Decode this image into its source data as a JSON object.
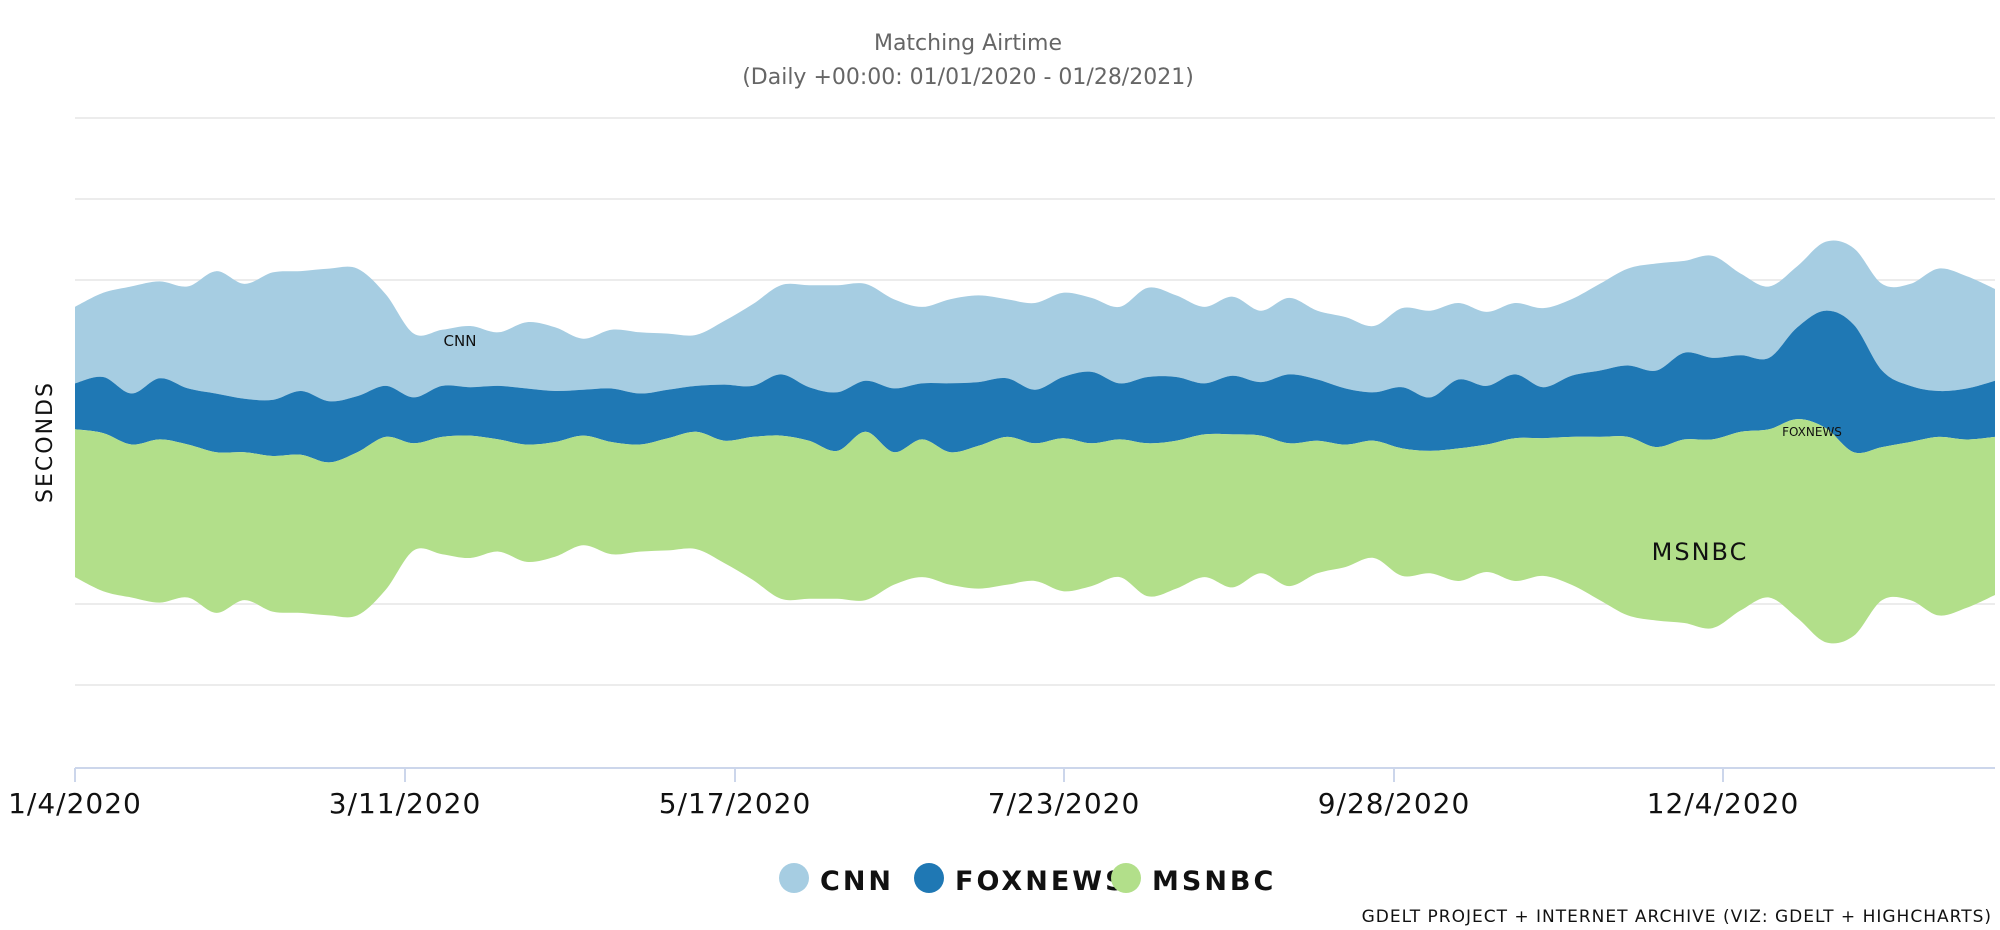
{
  "chart_data": {
    "type": "area",
    "subtype": "streamgraph",
    "title": "Matching Airtime",
    "subtitle": "(Daily +00:00: 01/01/2020 - 01/28/2021)",
    "ylabel": "SECONDS",
    "xlabel": "",
    "x_tick_labels": [
      "1/4/2020",
      "3/11/2020",
      "5/17/2020",
      "7/23/2020",
      "9/28/2020",
      "12/4/2020"
    ],
    "grid": true,
    "legend_position": "bottom-center",
    "credit": "GDELT PROJECT + INTERNET ARCHIVE (VIZ: GDELT + HIGHCHARTS)",
    "x_start": "1/4/2020",
    "x_step_days": 7,
    "series": [
      {
        "name": "CNN",
        "color": "#a6cde2",
        "values": [
          30,
          33,
          42,
          38,
          40,
          48,
          45,
          50,
          47,
          52,
          50,
          36,
          25,
          22,
          24,
          21,
          26,
          25,
          20,
          23,
          24,
          22,
          20,
          25,
          32,
          35,
          40,
          42,
          38,
          35,
          30,
          33,
          34,
          31,
          34,
          33,
          29,
          30,
          35,
          32,
          30,
          31,
          28,
          30,
          27,
          28,
          26,
          31,
          34,
          30,
          29,
          28,
          31,
          30,
          34,
          38,
          42,
          36,
          40,
          32,
          28,
          24,
          27,
          30,
          34,
          40,
          48,
          44,
          36
        ]
      },
      {
        "name": "FOXNEWS",
        "color": "#1f78b4",
        "values": [
          18,
          22,
          20,
          24,
          22,
          23,
          21,
          22,
          25,
          24,
          22,
          20,
          18,
          20,
          19,
          21,
          22,
          20,
          18,
          21,
          20,
          19,
          18,
          22,
          20,
          24,
          21,
          23,
          20,
          25,
          22,
          27,
          25,
          23,
          21,
          24,
          28,
          22,
          26,
          25,
          20,
          23,
          21,
          27,
          24,
          22,
          19,
          24,
          21,
          27,
          23,
          25,
          20,
          24,
          26,
          28,
          30,
          34,
          32,
          30,
          28,
          36,
          46,
          50,
          30,
          22,
          18,
          20,
          22
        ]
      },
      {
        "name": "MSNBC",
        "color": "#b2df8a",
        "values": [
          58,
          62,
          60,
          64,
          60,
          63,
          58,
          61,
          62,
          60,
          64,
          60,
          42,
          46,
          48,
          44,
          46,
          45,
          43,
          44,
          42,
          44,
          46,
          48,
          56,
          64,
          62,
          58,
          66,
          52,
          54,
          52,
          56,
          58,
          54,
          60,
          56,
          54,
          60,
          58,
          56,
          60,
          54,
          56,
          52,
          48,
          46,
          50,
          48,
          52,
          50,
          56,
          54,
          58,
          64,
          70,
          68,
          72,
          74,
          70,
          66,
          78,
          84,
          72,
          60,
          62,
          70,
          66,
          62
        ]
      }
    ]
  }
}
